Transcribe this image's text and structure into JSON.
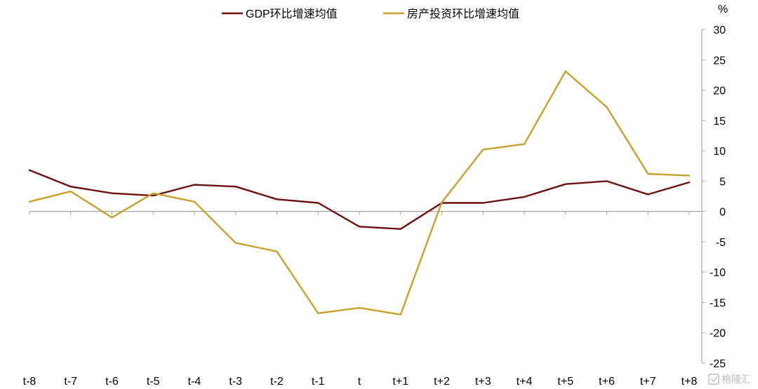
{
  "chart_data": {
    "type": "line",
    "title": "",
    "xlabel": "",
    "ylabel": "",
    "y_unit": "%",
    "categories": [
      "t-8",
      "t-7",
      "t-6",
      "t-5",
      "t-4",
      "t-3",
      "t-2",
      "t-1",
      "t",
      "t+1",
      "t+2",
      "t+3",
      "t+4",
      "t+5",
      "t+6",
      "t+7",
      "t+8"
    ],
    "ylim": [
      -25,
      30
    ],
    "yticks": [
      30,
      25,
      20,
      15,
      10,
      5,
      0,
      -5,
      -10,
      -15,
      -20,
      -25
    ],
    "y_axis_position": "right",
    "grid": false,
    "legend_position": "top",
    "series": [
      {
        "name": "GDP环比增速均值",
        "color": "#6b0f0f",
        "values": [
          6.8,
          4.1,
          3.0,
          2.6,
          4.4,
          4.1,
          2.0,
          1.4,
          -2.5,
          -2.9,
          1.4,
          1.4,
          2.4,
          4.5,
          5.0,
          2.8,
          4.8
        ]
      },
      {
        "name": "房产投资环比增速均值",
        "color": "#c9a12a",
        "values": [
          1.6,
          3.3,
          -1.0,
          3.0,
          1.6,
          -5.2,
          -6.6,
          -16.8,
          -15.9,
          -17.0,
          1.5,
          10.2,
          11.1,
          23.1,
          17.2,
          6.2,
          5.9
        ]
      }
    ]
  },
  "watermark": {
    "icon": "brand-logo-icon",
    "text": "格隆汇"
  }
}
